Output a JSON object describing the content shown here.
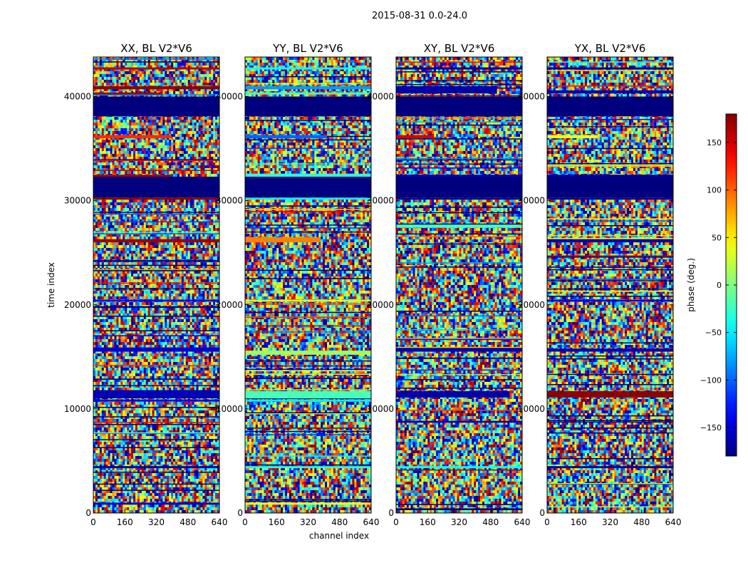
{
  "figure": {
    "suptitle": "2015-08-31 0.0-24.0"
  },
  "chart_data": {
    "type": "heatmap",
    "suptitle": "2015-08-31 0.0-24.0",
    "xlabel": "channel index",
    "ylabel": "time index",
    "xlim": [
      0,
      640
    ],
    "ylim": [
      0,
      43800
    ],
    "xticks": [
      0,
      160,
      320,
      480,
      640
    ],
    "yticks": [
      0,
      10000,
      20000,
      30000,
      40000
    ],
    "colorbar": {
      "label": "phase (deg.)",
      "range": [
        -180,
        180
      ],
      "ticks": [
        -150,
        -100,
        -50,
        0,
        50,
        100,
        150
      ],
      "tick_labels": [
        "−150",
        "−100",
        "−50",
        "0",
        "50",
        "100",
        "150"
      ],
      "colormap": "jet"
    },
    "flagged_time_ranges": [
      [
        38100,
        40000
      ],
      [
        30300,
        32300
      ]
    ],
    "panels": [
      {
        "title": "XX, BL V2*V6",
        "bands": [
          {
            "t0": 42600,
            "t1": 42800,
            "phase": 160,
            "width": 1.0
          },
          {
            "t0": 40700,
            "t1": 41000,
            "phase": 175,
            "width": 1.0
          },
          {
            "t0": 40200,
            "t1": 40400,
            "phase": 170,
            "width": 0.55
          },
          {
            "t0": 36000,
            "t1": 36300,
            "phase": 120,
            "width": 0.62
          },
          {
            "t0": 32300,
            "t1": 32500,
            "phase": 165,
            "width": 0.63
          },
          {
            "t0": 30100,
            "t1": 30300,
            "phase": 175,
            "width": 1.0
          },
          {
            "t0": 26000,
            "t1": 26300,
            "phase": 170,
            "width": 1.0
          },
          {
            "t0": 20300,
            "t1": 20500,
            "phase": -130,
            "width": 1.0
          },
          {
            "t0": 15500,
            "t1": 15900,
            "phase": -150,
            "width": 1.0
          },
          {
            "t0": 11100,
            "t1": 11800,
            "phase": -160,
            "width": 1.0
          },
          {
            "t0": 10700,
            "t1": 10900,
            "phase": -140,
            "width": 1.0
          },
          {
            "t0": 4300,
            "t1": 4500,
            "phase": -170,
            "width": 1.0
          },
          {
            "t0": 800,
            "t1": 1000,
            "phase": -150,
            "width": 1.0
          }
        ]
      },
      {
        "title": "YY, BL V2*V6",
        "bands": [
          {
            "t0": 42600,
            "t1": 42800,
            "phase": -40,
            "width": 1.0
          },
          {
            "t0": 40700,
            "t1": 41000,
            "phase": -80,
            "width": 1.0
          },
          {
            "t0": 40200,
            "t1": 40400,
            "phase": -20,
            "width": 1.0
          },
          {
            "t0": 36000,
            "t1": 36300,
            "phase": -100,
            "width": 0.65
          },
          {
            "t0": 32300,
            "t1": 32600,
            "phase": -30,
            "width": 1.0
          },
          {
            "t0": 30100,
            "t1": 30300,
            "phase": -50,
            "width": 1.0
          },
          {
            "t0": 26000,
            "t1": 26500,
            "phase": 90,
            "width": 0.6
          },
          {
            "t0": 20300,
            "t1": 20500,
            "phase": 30,
            "width": 1.0
          },
          {
            "t0": 15200,
            "t1": 15600,
            "phase": 10,
            "width": 1.0
          },
          {
            "t0": 11000,
            "t1": 11700,
            "phase": -20,
            "width": 1.0
          },
          {
            "t0": 10700,
            "t1": 10900,
            "phase": -50,
            "width": 1.0
          },
          {
            "t0": 4300,
            "t1": 4500,
            "phase": -30,
            "width": 1.0
          },
          {
            "t0": 800,
            "t1": 1000,
            "phase": 40,
            "width": 1.0
          }
        ]
      },
      {
        "title": "XY, BL V2*V6",
        "bands": [
          {
            "t0": 42600,
            "t1": 42800,
            "phase": -170,
            "width": 1.0
          },
          {
            "t0": 40300,
            "t1": 41000,
            "phase": -165,
            "width": 0.8
          },
          {
            "t0": 36000,
            "t1": 36300,
            "phase": 150,
            "width": 0.3
          },
          {
            "t0": 32300,
            "t1": 32500,
            "phase": -160,
            "width": 1.0
          },
          {
            "t0": 30100,
            "t1": 30300,
            "phase": -170,
            "width": 1.0
          },
          {
            "t0": 27400,
            "t1": 27700,
            "phase": -20,
            "width": 1.0
          },
          {
            "t0": 15500,
            "t1": 15800,
            "phase": -160,
            "width": 1.0
          },
          {
            "t0": 11100,
            "t1": 11700,
            "phase": -165,
            "width": 0.9
          },
          {
            "t0": 4300,
            "t1": 4500,
            "phase": -40,
            "width": 1.0
          }
        ]
      },
      {
        "title": "YX, BL V2*V6",
        "bands": [
          {
            "t0": 42600,
            "t1": 42800,
            "phase": -170,
            "width": 1.0
          },
          {
            "t0": 40300,
            "t1": 40600,
            "phase": -160,
            "width": 1.0
          },
          {
            "t0": 36000,
            "t1": 36300,
            "phase": 40,
            "width": 0.4
          },
          {
            "t0": 32300,
            "t1": 32500,
            "phase": -170,
            "width": 1.0
          },
          {
            "t0": 30100,
            "t1": 30300,
            "phase": -170,
            "width": 1.0
          },
          {
            "t0": 26000,
            "t1": 26300,
            "phase": -160,
            "width": 1.0
          },
          {
            "t0": 20300,
            "t1": 20500,
            "phase": -140,
            "width": 1.0
          },
          {
            "t0": 15500,
            "t1": 15800,
            "phase": -160,
            "width": 1.0
          },
          {
            "t0": 11100,
            "t1": 11700,
            "phase": 175,
            "width": 1.0
          },
          {
            "t0": 4300,
            "t1": 4500,
            "phase": -170,
            "width": 1.0
          }
        ]
      }
    ]
  }
}
